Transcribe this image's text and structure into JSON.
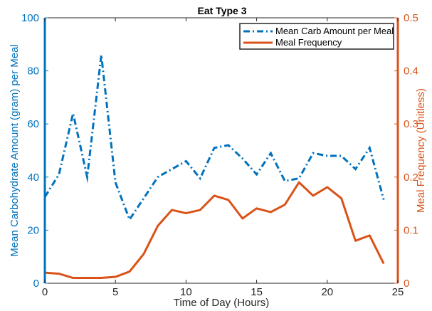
{
  "chart_data": {
    "type": "line",
    "title": "Eat Type 3",
    "xlabel": "Time of Day (Hours)",
    "ylabel_left": "Mean Carbohydrate Amount (gram) per Meal",
    "ylabel_right": "Meal Frequency (Unitless)",
    "xlim": [
      0,
      25
    ],
    "ylim_left": [
      0,
      100
    ],
    "ylim_right": [
      0,
      0.5
    ],
    "xticks": [
      0,
      5,
      10,
      15,
      20,
      25
    ],
    "yticks_left": [
      0,
      20,
      40,
      60,
      80,
      100
    ],
    "yticks_right": [
      0,
      0.1,
      0.2,
      0.3,
      0.4,
      0.5
    ],
    "ytick_labels_right": [
      "0",
      "0.1",
      "0.2",
      "0.3",
      "0.4",
      "0.5"
    ],
    "grid": false,
    "legend_position": "top-right",
    "colors": {
      "left_axis": "#0072BD",
      "right_axis": "#D95319",
      "frame": "#262626"
    },
    "series": [
      {
        "name": "Mean Carb Amount per Meal",
        "axis": "left",
        "style": "dash-dot",
        "color": "#0072BD",
        "x": [
          0,
          1,
          2,
          3,
          4,
          5,
          6,
          7,
          8,
          9,
          10,
          11,
          12,
          13,
          14,
          15,
          16,
          17,
          18,
          19,
          20,
          21,
          22,
          23,
          24
        ],
        "y": [
          32.5,
          41,
          64,
          40,
          86,
          38,
          24,
          32,
          40,
          43,
          46,
          39.5,
          51,
          52,
          47,
          41,
          49,
          38.5,
          39.5,
          49,
          48,
          48,
          43,
          51,
          31.5
        ]
      },
      {
        "name": "Meal Frequency",
        "axis": "right",
        "style": "solid",
        "color": "#D95319",
        "x": [
          0,
          1,
          2,
          3,
          4,
          5,
          6,
          7,
          8,
          9,
          10,
          11,
          12,
          13,
          14,
          15,
          16,
          17,
          18,
          19,
          20,
          21,
          22,
          23,
          24
        ],
        "y": [
          0.02,
          0.018,
          0.01,
          0.01,
          0.01,
          0.012,
          0.022,
          0.055,
          0.108,
          0.138,
          0.132,
          0.138,
          0.165,
          0.157,
          0.122,
          0.141,
          0.134,
          0.148,
          0.19,
          0.165,
          0.181,
          0.16,
          0.08,
          0.09,
          0.037
        ]
      }
    ]
  }
}
